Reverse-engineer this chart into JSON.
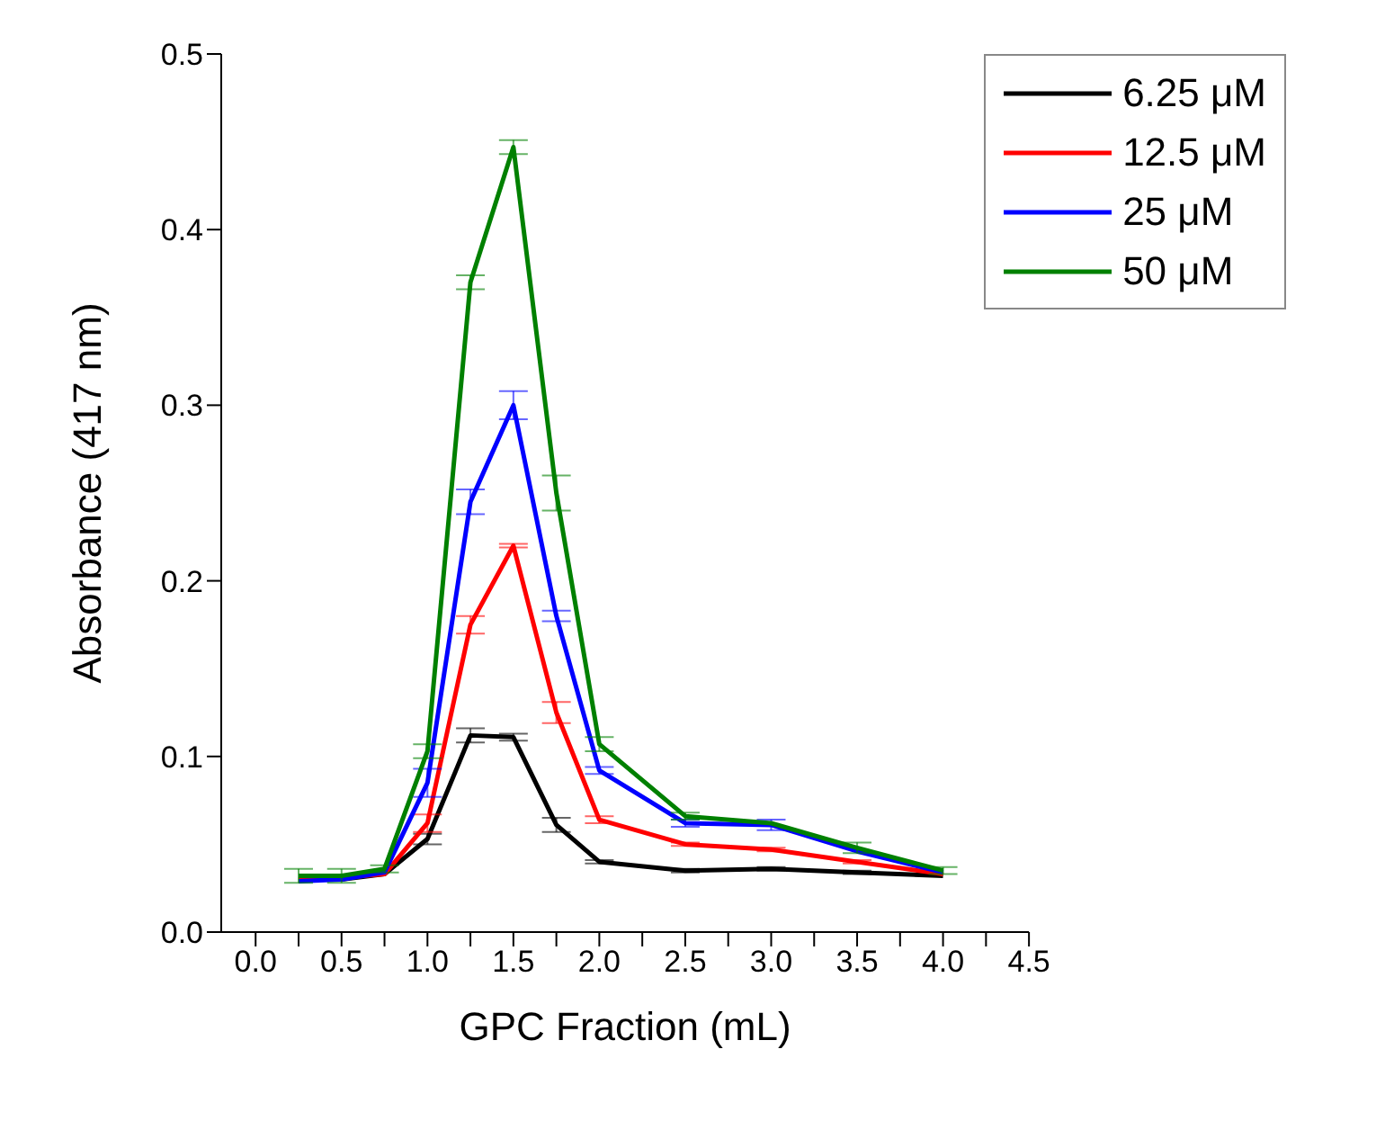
{
  "chart_data": {
    "type": "line",
    "xlabel": "GPC Fraction (mL)",
    "ylabel": "Absorbance (417 nm)",
    "x": [
      0.25,
      0.5,
      0.75,
      1.0,
      1.25,
      1.5,
      1.75,
      2.0,
      2.5,
      3.0,
      3.5,
      4.0
    ],
    "series": [
      {
        "name": "6.25 μM",
        "color": "#000000",
        "values": [
          0.03,
          0.03,
          0.033,
          0.053,
          0.112,
          0.111,
          0.061,
          0.04,
          0.035,
          0.036,
          0.034,
          0.032
        ],
        "errors": [
          null,
          null,
          null,
          0.003,
          0.004,
          0.002,
          0.004,
          0.001,
          0.001,
          0.001,
          0.001,
          null
        ]
      },
      {
        "name": "12.5 μM",
        "color": "#ff0000",
        "values": [
          0.03,
          0.031,
          0.033,
          0.062,
          0.175,
          0.22,
          0.125,
          0.064,
          0.05,
          0.047,
          0.04,
          0.033
        ],
        "errors": [
          null,
          null,
          null,
          0.005,
          0.005,
          0.001,
          0.006,
          0.002,
          0.001,
          0.001,
          0.001,
          null
        ]
      },
      {
        "name": "25 μM",
        "color": "#0000ff",
        "values": [
          0.029,
          0.03,
          0.034,
          0.085,
          0.245,
          0.3,
          0.18,
          0.092,
          0.062,
          0.061,
          0.046,
          0.034
        ],
        "errors": [
          null,
          null,
          null,
          0.008,
          0.007,
          0.008,
          0.003,
          0.002,
          0.002,
          0.003,
          null,
          null
        ]
      },
      {
        "name": "50 μM",
        "color": "#008000",
        "values": [
          0.032,
          0.032,
          0.036,
          0.103,
          0.37,
          0.447,
          0.25,
          0.107,
          0.066,
          0.062,
          0.048,
          0.035
        ],
        "errors": [
          0.004,
          0.004,
          0.002,
          0.004,
          0.004,
          0.004,
          0.01,
          0.004,
          0.002,
          null,
          0.003,
          0.002
        ]
      }
    ],
    "xlim": [
      -0.2,
      4.5
    ],
    "xticks": [
      {
        "value": 0,
        "label": "0.0"
      },
      {
        "value": 0.25,
        "label": null
      },
      {
        "value": 0.5,
        "label": "0.5"
      },
      {
        "value": 0.75,
        "label": null
      },
      {
        "value": 1,
        "label": "1.0"
      },
      {
        "value": 1.25,
        "label": null
      },
      {
        "value": 1.5,
        "label": "1.5"
      },
      {
        "value": 1.75,
        "label": null
      },
      {
        "value": 2,
        "label": "2.0"
      },
      {
        "value": 2.25,
        "label": null
      },
      {
        "value": 2.5,
        "label": "2.5"
      },
      {
        "value": 2.75,
        "label": null
      },
      {
        "value": 3,
        "label": "3.0"
      },
      {
        "value": 3.25,
        "label": null
      },
      {
        "value": 3.5,
        "label": "3.5"
      },
      {
        "value": 3.75,
        "label": null
      },
      {
        "value": 4,
        "label": "4.0"
      },
      {
        "value": 4.25,
        "label": null
      },
      {
        "value": 4.5,
        "label": "4.5"
      }
    ],
    "ylim": [
      0,
      0.5
    ],
    "yticks": [
      {
        "value": 0,
        "label": "0.0"
      },
      {
        "value": 0.1,
        "label": "0.1"
      },
      {
        "value": 0.2,
        "label": "0.2"
      },
      {
        "value": 0.3,
        "label": "0.3"
      },
      {
        "value": 0.4,
        "label": "0.4"
      },
      {
        "value": 0.5,
        "label": "0.5"
      }
    ],
    "grid": false,
    "legend": "top right",
    "marker": "none",
    "line_style": "solid"
  }
}
